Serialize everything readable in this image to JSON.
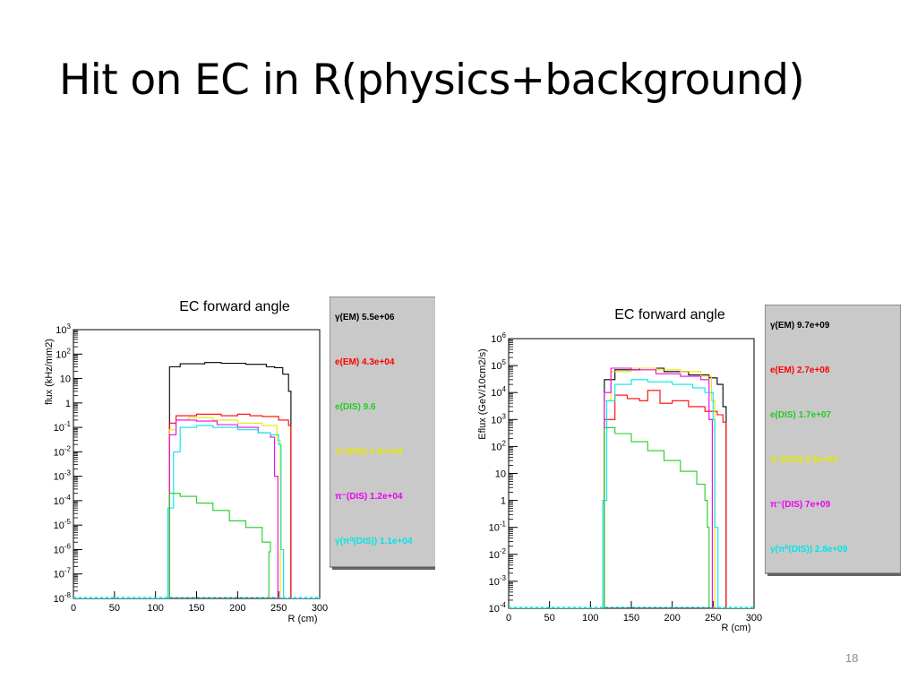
{
  "slide": {
    "title": "Hit on EC in R(physics+background)",
    "page_number": "18"
  },
  "chart_data": [
    {
      "type": "line",
      "title": "EC forward angle",
      "xlabel": "R (cm)",
      "ylabel": "flux (kHz/mm2)",
      "log_y": true,
      "xlim": [
        0,
        300
      ],
      "ylim": [
        1e-08,
        1000
      ],
      "x_ticks": [
        "0",
        "50",
        "100",
        "150",
        "200",
        "250",
        "300"
      ],
      "y_ticks": [
        {
          "base": "10",
          "exp": "3"
        },
        {
          "base": "10",
          "exp": "2"
        },
        {
          "base": "10",
          "exp": ""
        },
        {
          "base": "1",
          "exp": ""
        },
        {
          "base": "10",
          "exp": "-1"
        },
        {
          "base": "10",
          "exp": "-2"
        },
        {
          "base": "10",
          "exp": "-3"
        },
        {
          "base": "10",
          "exp": "-4"
        },
        {
          "base": "10",
          "exp": "-5"
        },
        {
          "base": "10",
          "exp": "-6"
        },
        {
          "base": "10",
          "exp": "-7"
        },
        {
          "base": "10",
          "exp": "-8"
        }
      ],
      "legend_position": "right",
      "legend": [
        {
          "label": "γ(EM)  5.5e+06",
          "color": "#000000"
        },
        {
          "label": "e(EM)  4.3e+04",
          "color": "#ff0000"
        },
        {
          "label": "e(DIS)  9.6",
          "color": "#22cc22"
        },
        {
          "label": "π⁺(DIS)  1.5e+04",
          "color": "#e8e800"
        },
        {
          "label": "π⁻(DIS)  1.2e+04",
          "color": "#ee00ee"
        },
        {
          "label": "γ(π⁰(DIS))  1.1e+04",
          "color": "#00e6e6"
        }
      ],
      "series": [
        {
          "color": "#000000",
          "points": [
            [
              0,
              1e-08
            ],
            [
              117,
              1e-08
            ],
            [
              117,
              30
            ],
            [
              130,
              40
            ],
            [
              160,
              45
            ],
            [
              180,
              42
            ],
            [
              210,
              38
            ],
            [
              235,
              30
            ],
            [
              245,
              28
            ],
            [
              255,
              15
            ],
            [
              262,
              3
            ],
            [
              265,
              1e-08
            ],
            [
              300,
              1e-08
            ]
          ]
        },
        {
          "color": "#ff0000",
          "points": [
            [
              0,
              1e-08
            ],
            [
              117,
              1e-08
            ],
            [
              117,
              0.15
            ],
            [
              125,
              0.3
            ],
            [
              150,
              0.35
            ],
            [
              180,
              0.3
            ],
            [
              200,
              0.35
            ],
            [
              215,
              0.3
            ],
            [
              230,
              0.28
            ],
            [
              250,
              0.2
            ],
            [
              262,
              0.12
            ],
            [
              265,
              1e-08
            ],
            [
              300,
              1e-08
            ]
          ]
        },
        {
          "color": "#e8e800",
          "points": [
            [
              0,
              1e-08
            ],
            [
              117,
              1e-08
            ],
            [
              117,
              0.08
            ],
            [
              125,
              0.2
            ],
            [
              140,
              0.25
            ],
            [
              170,
              0.2
            ],
            [
              200,
              0.15
            ],
            [
              230,
              0.12
            ],
            [
              248,
              0.03
            ],
            [
              252,
              1e-08
            ],
            [
              300,
              1e-08
            ]
          ]
        },
        {
          "color": "#ee00ee",
          "points": [
            [
              0,
              1e-08
            ],
            [
              117,
              1e-08
            ],
            [
              117,
              0.05
            ],
            [
              125,
              0.2
            ],
            [
              150,
              0.18
            ],
            [
              175,
              0.13
            ],
            [
              200,
              0.1
            ],
            [
              225,
              0.06
            ],
            [
              240,
              0.04
            ],
            [
              245,
              0.001
            ],
            [
              249,
              1e-08
            ],
            [
              300,
              1e-08
            ]
          ]
        },
        {
          "color": "#00e6e6",
          "points": [
            [
              0,
              1e-08
            ],
            [
              115,
              1e-08
            ],
            [
              115,
              5e-05
            ],
            [
              122,
              0.01
            ],
            [
              130,
              0.1
            ],
            [
              150,
              0.12
            ],
            [
              170,
              0.1
            ],
            [
              200,
              0.08
            ],
            [
              225,
              0.06
            ],
            [
              240,
              0.05
            ],
            [
              250,
              0.02
            ],
            [
              253,
              1e-06
            ],
            [
              256,
              1e-08
            ],
            [
              300,
              1e-08
            ]
          ]
        },
        {
          "color": "#22cc22",
          "points": [
            [
              117,
              1e-08
            ],
            [
              117,
              0.0002
            ],
            [
              130,
              0.00015
            ],
            [
              150,
              8e-05
            ],
            [
              170,
              4e-05
            ],
            [
              190,
              1.5e-05
            ],
            [
              210,
              8e-06
            ],
            [
              230,
              2e-06
            ],
            [
              240,
              8e-07
            ],
            [
              238,
              1e-08
            ]
          ]
        }
      ]
    },
    {
      "type": "line",
      "title": "EC forward angle",
      "xlabel": "R (cm)",
      "ylabel": "Eflux (GeV/10cm2/s)",
      "log_y": true,
      "xlim": [
        0,
        300
      ],
      "ylim": [
        0.0001,
        1000000
      ],
      "x_ticks": [
        "0",
        "50",
        "100",
        "150",
        "200",
        "250",
        "300"
      ],
      "y_ticks": [
        {
          "base": "10",
          "exp": "6"
        },
        {
          "base": "10",
          "exp": "5"
        },
        {
          "base": "10",
          "exp": "4"
        },
        {
          "base": "10",
          "exp": "3"
        },
        {
          "base": "10",
          "exp": "2"
        },
        {
          "base": "10",
          "exp": ""
        },
        {
          "base": "1",
          "exp": ""
        },
        {
          "base": "10",
          "exp": "-1"
        },
        {
          "base": "10",
          "exp": "-2"
        },
        {
          "base": "10",
          "exp": "-3"
        },
        {
          "base": "10",
          "exp": "-4"
        }
      ],
      "legend_position": "right",
      "legend": [
        {
          "label": "γ(EM)  9.7e+09",
          "color": "#000000"
        },
        {
          "label": "e(EM)  2.7e+08",
          "color": "#ff0000"
        },
        {
          "label": "e(DIS)  1.7e+07",
          "color": "#22cc22"
        },
        {
          "label": "π⁺(DIS)  6.6e+09",
          "color": "#e8e800"
        },
        {
          "label": "π⁻(DIS)  7e+09",
          "color": "#ee00ee"
        },
        {
          "label": "γ(π⁰(DIS))  2.8e+09",
          "color": "#00e6e6"
        }
      ],
      "series": [
        {
          "color": "#000000",
          "points": [
            [
              0,
              0.0001
            ],
            [
              117,
              0.0001
            ],
            [
              117,
              30000
            ],
            [
              130,
              70000
            ],
            [
              160,
              80000
            ],
            [
              190,
              60000
            ],
            [
              220,
              45000
            ],
            [
              245,
              35000
            ],
            [
              255,
              20000
            ],
            [
              262,
              3000
            ],
            [
              266,
              0.0001
            ],
            [
              300,
              0.0001
            ]
          ]
        },
        {
          "color": "#ff0000",
          "points": [
            [
              0,
              0.0001
            ],
            [
              117,
              0.0001
            ],
            [
              117,
              1000
            ],
            [
              130,
              8000
            ],
            [
              145,
              6000
            ],
            [
              160,
              5000
            ],
            [
              170,
              12000
            ],
            [
              185,
              4000
            ],
            [
              200,
              5000
            ],
            [
              220,
              3000
            ],
            [
              240,
              2000
            ],
            [
              255,
              1500
            ],
            [
              262,
              800
            ],
            [
              266,
              0.0001
            ],
            [
              300,
              0.0001
            ]
          ]
        },
        {
          "color": "#e8e800",
          "points": [
            [
              0,
              0.0001
            ],
            [
              117,
              0.0001
            ],
            [
              117,
              5000
            ],
            [
              125,
              60000
            ],
            [
              150,
              80000
            ],
            [
              180,
              70000
            ],
            [
              210,
              60000
            ],
            [
              235,
              40000
            ],
            [
              248,
              5000
            ],
            [
              252,
              0.0001
            ],
            [
              300,
              0.0001
            ]
          ]
        },
        {
          "color": "#ee00ee",
          "points": [
            [
              0,
              0.0001
            ],
            [
              117,
              0.0001
            ],
            [
              117,
              10000
            ],
            [
              125,
              80000
            ],
            [
              150,
              70000
            ],
            [
              180,
              50000
            ],
            [
              210,
              40000
            ],
            [
              235,
              30000
            ],
            [
              245,
              1000
            ],
            [
              249,
              0.0001
            ],
            [
              300,
              0.0001
            ]
          ]
        },
        {
          "color": "#00e6e6",
          "points": [
            [
              0,
              0.0001
            ],
            [
              115,
              0.0001
            ],
            [
              115,
              1
            ],
            [
              120,
              5000
            ],
            [
              130,
              20000
            ],
            [
              150,
              30000
            ],
            [
              170,
              25000
            ],
            [
              200,
              20000
            ],
            [
              225,
              15000
            ],
            [
              240,
              10000
            ],
            [
              250,
              1000
            ],
            [
              252,
              0.1
            ],
            [
              256,
              0.0001
            ],
            [
              300,
              0.0001
            ]
          ]
        },
        {
          "color": "#22cc22",
          "points": [
            [
              117,
              0.0001
            ],
            [
              117,
              500
            ],
            [
              130,
              300
            ],
            [
              150,
              150
            ],
            [
              170,
              70
            ],
            [
              190,
              30
            ],
            [
              210,
              12
            ],
            [
              230,
              4
            ],
            [
              240,
              1
            ],
            [
              243,
              0.1
            ],
            [
              245,
              0.0001
            ]
          ]
        }
      ]
    }
  ]
}
